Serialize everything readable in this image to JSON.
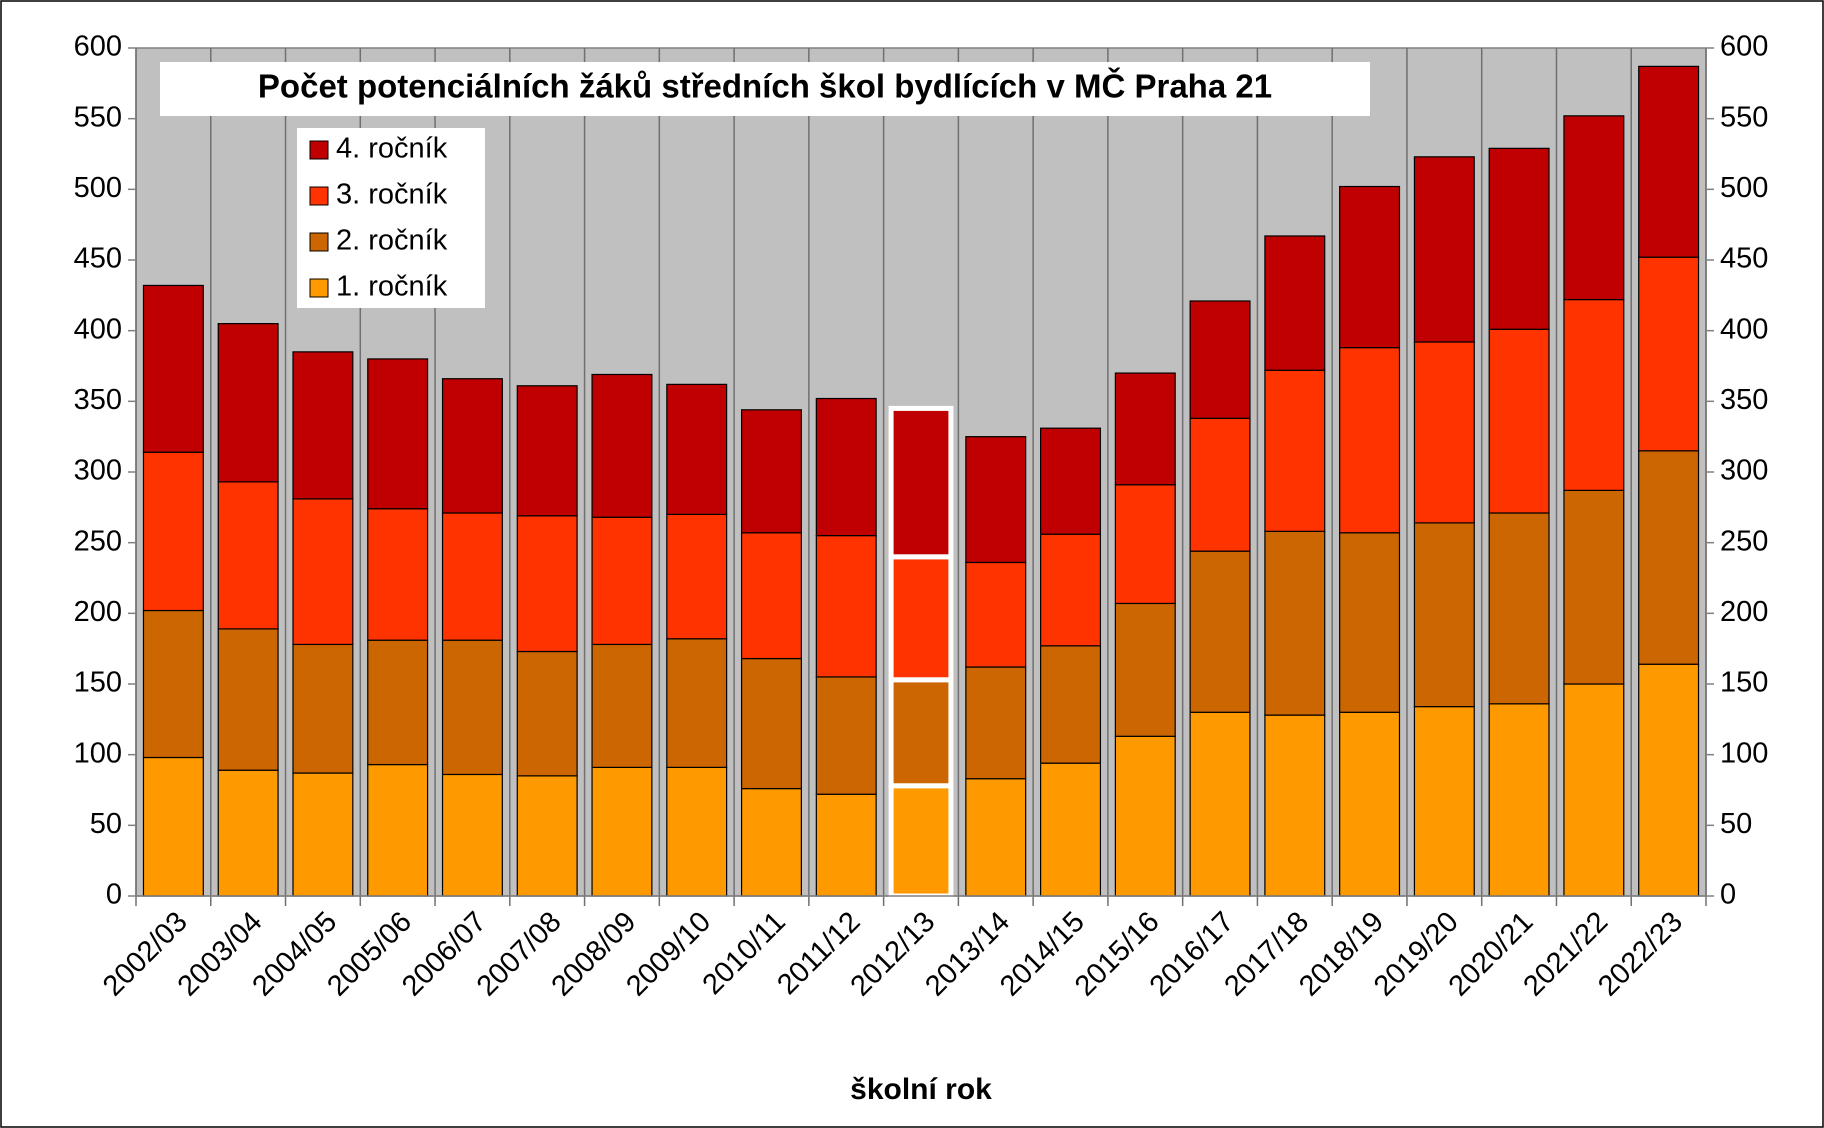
{
  "chart_data": {
    "type": "bar",
    "stacked": true,
    "title": "Počet potenciálních žáků středních škol bydlících v MČ Praha 21",
    "x_label": "školní rok",
    "categories": [
      "2002/03",
      "2003/04",
      "2004/05",
      "2005/06",
      "2006/07",
      "2007/08",
      "2008/09",
      "2009/10",
      "2010/11",
      "2011/12",
      "2012/13",
      "2013/14",
      "2014/15",
      "2015/16",
      "2016/17",
      "2017/18",
      "2018/19",
      "2019/20",
      "2020/21",
      "2021/22",
      "2022/23"
    ],
    "series": [
      {
        "name": "1. ročník",
        "color": "#ff9900",
        "values": [
          98,
          89,
          87,
          93,
          86,
          85,
          91,
          91,
          76,
          72,
          78,
          83,
          94,
          113,
          130,
          128,
          130,
          134,
          136,
          150,
          164
        ]
      },
      {
        "name": "2. ročník",
        "color": "#cc6600",
        "values": [
          104,
          100,
          91,
          88,
          95,
          88,
          87,
          91,
          92,
          83,
          75,
          79,
          83,
          94,
          114,
          130,
          127,
          130,
          135,
          137,
          151
        ]
      },
      {
        "name": "3. ročník",
        "color": "#ff3300",
        "values": [
          112,
          104,
          103,
          93,
          90,
          96,
          90,
          88,
          89,
          100,
          87,
          74,
          79,
          84,
          94,
          114,
          131,
          128,
          130,
          135,
          137
        ]
      },
      {
        "name": "4. ročník",
        "color": "#c00000",
        "values": [
          118,
          112,
          104,
          106,
          95,
          92,
          101,
          92,
          87,
          97,
          105,
          89,
          75,
          79,
          83,
          95,
          114,
          131,
          128,
          130,
          135
        ]
      }
    ],
    "highlight_index": 10,
    "ylim": [
      0,
      600
    ],
    "yticks": [
      0,
      50,
      100,
      150,
      200,
      250,
      300,
      350,
      400,
      450,
      500,
      550,
      600
    ],
    "y2lim": [
      0,
      600
    ],
    "y2ticks": [
      0,
      50,
      100,
      150,
      200,
      250,
      300,
      350,
      400,
      450,
      500,
      550,
      600
    ],
    "legend": "top-left",
    "background": "#c0c0c0"
  }
}
